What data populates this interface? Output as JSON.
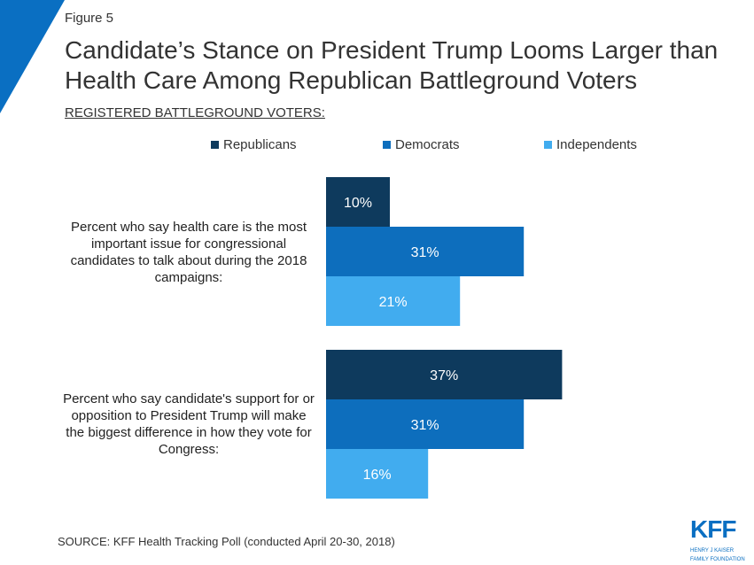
{
  "header": {
    "figure_label": "Figure 5",
    "title": "Candidate’s Stance on President Trump Looms Larger than Health Care Among Republican Battleground Voters",
    "subtitle": "REGISTERED BATTLEGROUND VOTERS:"
  },
  "chart_data": {
    "type": "bar",
    "orientation": "horizontal",
    "categories": [
      "Percent who say health care is the most important issue for congressional candidates to talk about during the 2018 campaigns:",
      "Percent who say candidate's support for or opposition to President Trump will make the biggest difference in how they vote for Congress:"
    ],
    "series": [
      {
        "name": "Republicans",
        "color": "#0e3a5d",
        "values": [
          10,
          37
        ],
        "labels": [
          "10%",
          "37%"
        ]
      },
      {
        "name": "Democrats",
        "color": "#0d6ebd",
        "values": [
          31,
          31
        ],
        "labels": [
          "31%",
          "31%"
        ]
      },
      {
        "name": "Independents",
        "color": "#41acef",
        "values": [
          21,
          16
        ],
        "labels": [
          "21%",
          "16%"
        ]
      }
    ],
    "legend": "top",
    "grid": false,
    "xlim": [
      0,
      100
    ]
  },
  "footer": {
    "source": "SOURCE: KFF Health Tracking Poll (conducted April 20-30, 2018)",
    "logo": "KFF",
    "logo_sub1": "HENRY J KAISER",
    "logo_sub2": "FAMILY FOUNDATION"
  },
  "colors": {
    "accent": "#0a6fc2"
  }
}
